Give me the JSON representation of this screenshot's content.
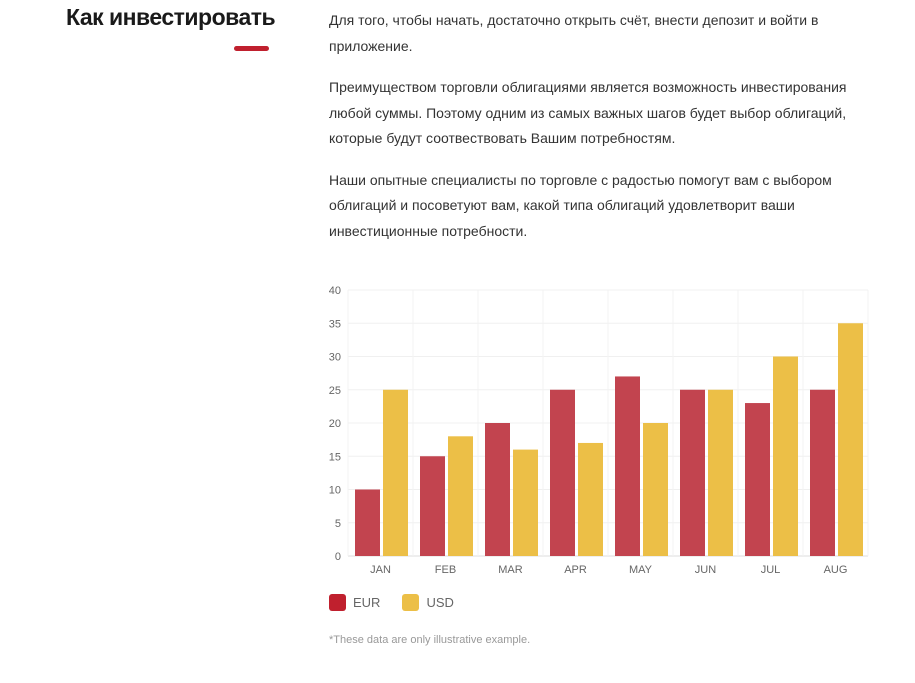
{
  "heading": "Как инвестировать",
  "paragraphs": [
    "Для того, чтобы начать, достаточно открыть счёт, внести депозит и войти в приложение.",
    "Преимуществом торговли облигациями является возможность инвестирования любой суммы. Поэтому одним из самых важных шагов будет выбор облигаций, которые будут соотвествовать Вашим потребностям.",
    "Наши опытные специалисты по торговле с радостью помогут вам с выбором облигаций и посоветуют вам, какой типа облигаций удовлетворит ваши инвестиционные потребности."
  ],
  "colors": {
    "accent": "#c0202e",
    "eur": "#c2444f",
    "usd": "#ecbf47"
  },
  "chart_data": {
    "type": "bar",
    "categories": [
      "JAN",
      "FEB",
      "MAR",
      "APR",
      "MAY",
      "JUN",
      "JUL",
      "AUG"
    ],
    "series": [
      {
        "name": "EUR",
        "values": [
          10,
          15,
          20,
          25,
          27,
          25,
          23,
          25
        ]
      },
      {
        "name": "USD",
        "values": [
          25,
          18,
          16,
          17,
          20,
          25,
          30,
          35
        ]
      }
    ],
    "ylim": [
      0,
      40
    ],
    "yticks": [
      "0",
      "5",
      "10",
      "15",
      "20",
      "25",
      "30",
      "35",
      "40"
    ],
    "grid": true,
    "legend": "bottom-left"
  },
  "note": "*These data are only illustrative example."
}
